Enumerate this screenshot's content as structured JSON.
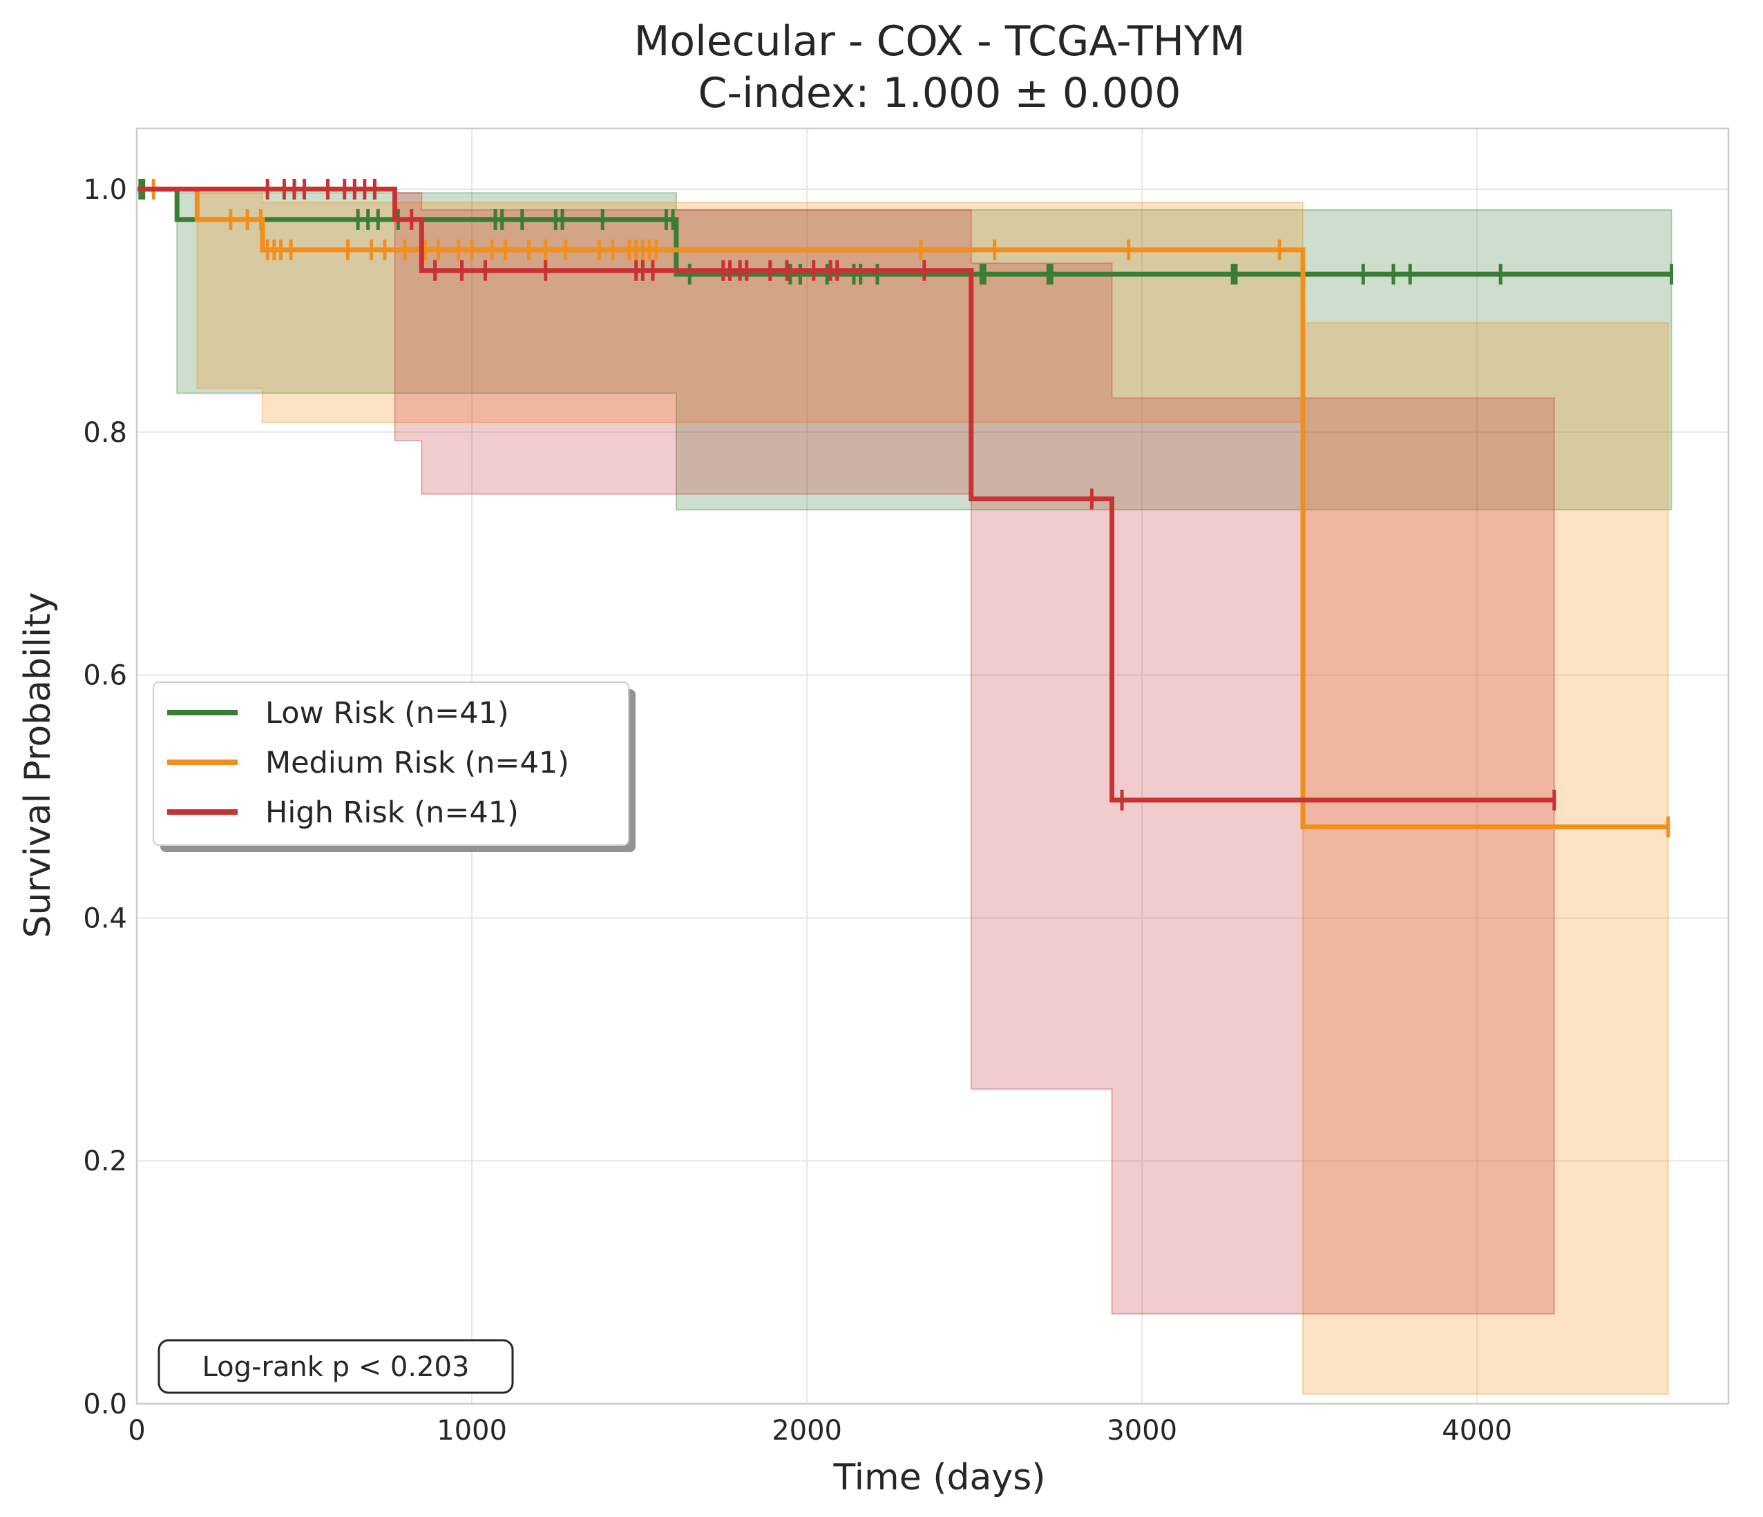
{
  "chart_data": {
    "type": "line",
    "title": "Molecular - COX - TCGA-THYM",
    "subtitle": "C-index: 1.000 ± 0.000",
    "xlabel": "Time (days)",
    "ylabel": "Survival Probability",
    "xlim": [
      0,
      4750
    ],
    "ylim": [
      0,
      1.05
    ],
    "xticks": [
      0,
      1000,
      2000,
      3000,
      4000
    ],
    "xtick_labels": [
      "0",
      "1000",
      "2000",
      "3000",
      "4000"
    ],
    "yticks": [
      0.0,
      0.2,
      0.4,
      0.6,
      0.8,
      1.0
    ],
    "ytick_labels": [
      "0.0",
      "0.2",
      "0.4",
      "0.6",
      "0.8",
      "1.0"
    ],
    "grid": true,
    "legend_position": "center-left",
    "annotation": "Log-rank p < 0.203",
    "series": [
      {
        "name": "Low Risk (n=41)",
        "color": "#3a7d35",
        "steps": [
          [
            0,
            1.0
          ],
          [
            120,
            0.975
          ],
          [
            1610,
            0.93
          ],
          [
            4580,
            0.93
          ]
        ],
        "ci": [
          [
            0,
            1.0,
            1.0
          ],
          [
            120,
            0.832,
            0.997
          ],
          [
            1610,
            0.736,
            0.983
          ],
          [
            4580,
            0.736,
            0.983
          ]
        ],
        "censored": [
          [
            10,
            1.0
          ],
          [
            20,
            1.0
          ],
          [
            660,
            0.975
          ],
          [
            690,
            0.975
          ],
          [
            720,
            0.975
          ],
          [
            780,
            0.975
          ],
          [
            1070,
            0.975
          ],
          [
            1090,
            0.975
          ],
          [
            1150,
            0.975
          ],
          [
            1250,
            0.975
          ],
          [
            1270,
            0.975
          ],
          [
            1390,
            0.975
          ],
          [
            1580,
            0.975
          ],
          [
            1600,
            0.975
          ],
          [
            1650,
            0.93
          ],
          [
            1950,
            0.93
          ],
          [
            1980,
            0.93
          ],
          [
            2060,
            0.93
          ],
          [
            2140,
            0.93
          ],
          [
            2160,
            0.93
          ],
          [
            2210,
            0.93
          ],
          [
            2520,
            0.93
          ],
          [
            2530,
            0.93
          ],
          [
            2720,
            0.93
          ],
          [
            2730,
            0.93
          ],
          [
            3270,
            0.93
          ],
          [
            3280,
            0.93
          ],
          [
            3660,
            0.93
          ],
          [
            3750,
            0.93
          ],
          [
            3800,
            0.93
          ],
          [
            4070,
            0.93
          ],
          [
            4580,
            0.93
          ]
        ]
      },
      {
        "name": "Medium Risk (n=41)",
        "color": "#f28e1c",
        "steps": [
          [
            0,
            1.0
          ],
          [
            180,
            0.975
          ],
          [
            375,
            0.95
          ],
          [
            3480,
            0.475
          ],
          [
            4570,
            0.475
          ]
        ],
        "ci": [
          [
            0,
            1.0,
            1.0
          ],
          [
            180,
            0.836,
            0.997
          ],
          [
            375,
            0.808,
            0.989
          ],
          [
            3480,
            0.008,
            0.89
          ],
          [
            4570,
            0.008,
            0.89
          ]
        ],
        "censored": [
          [
            50,
            1.0
          ],
          [
            280,
            0.975
          ],
          [
            330,
            0.975
          ],
          [
            370,
            0.975
          ],
          [
            390,
            0.95
          ],
          [
            410,
            0.95
          ],
          [
            430,
            0.95
          ],
          [
            460,
            0.95
          ],
          [
            630,
            0.95
          ],
          [
            700,
            0.95
          ],
          [
            740,
            0.95
          ],
          [
            800,
            0.95
          ],
          [
            860,
            0.95
          ],
          [
            900,
            0.95
          ],
          [
            960,
            0.95
          ],
          [
            1000,
            0.95
          ],
          [
            1060,
            0.95
          ],
          [
            1100,
            0.95
          ],
          [
            1170,
            0.95
          ],
          [
            1220,
            0.95
          ],
          [
            1280,
            0.95
          ],
          [
            1380,
            0.95
          ],
          [
            1420,
            0.95
          ],
          [
            1470,
            0.95
          ],
          [
            1490,
            0.95
          ],
          [
            1510,
            0.95
          ],
          [
            1530,
            0.95
          ],
          [
            1550,
            0.95
          ],
          [
            2340,
            0.95
          ],
          [
            2560,
            0.95
          ],
          [
            2960,
            0.95
          ],
          [
            3410,
            0.95
          ],
          [
            4570,
            0.475
          ]
        ]
      },
      {
        "name": "High Risk (n=41)",
        "color": "#c83232",
        "steps": [
          [
            0,
            1.0
          ],
          [
            770,
            0.975
          ],
          [
            850,
            0.933
          ],
          [
            2490,
            0.745
          ],
          [
            2910,
            0.497
          ],
          [
            4230,
            0.497
          ]
        ],
        "ci": [
          [
            0,
            1.0,
            1.0
          ],
          [
            770,
            0.793,
            0.997
          ],
          [
            850,
            0.749,
            0.983
          ],
          [
            2490,
            0.259,
            0.939
          ],
          [
            2910,
            0.074,
            0.828
          ],
          [
            4230,
            0.074,
            0.828
          ]
        ],
        "censored": [
          [
            390,
            1.0
          ],
          [
            440,
            1.0
          ],
          [
            470,
            1.0
          ],
          [
            500,
            1.0
          ],
          [
            570,
            1.0
          ],
          [
            620,
            1.0
          ],
          [
            650,
            1.0
          ],
          [
            680,
            1.0
          ],
          [
            710,
            1.0
          ],
          [
            820,
            0.975
          ],
          [
            890,
            0.933
          ],
          [
            970,
            0.933
          ],
          [
            1040,
            0.933
          ],
          [
            1220,
            0.933
          ],
          [
            1490,
            0.933
          ],
          [
            1510,
            0.933
          ],
          [
            1540,
            0.933
          ],
          [
            1750,
            0.933
          ],
          [
            1770,
            0.933
          ],
          [
            1800,
            0.933
          ],
          [
            1820,
            0.933
          ],
          [
            1890,
            0.933
          ],
          [
            1940,
            0.933
          ],
          [
            2020,
            0.933
          ],
          [
            2070,
            0.933
          ],
          [
            2090,
            0.933
          ],
          [
            2350,
            0.933
          ],
          [
            2850,
            0.745
          ],
          [
            2940,
            0.497
          ],
          [
            4230,
            0.497
          ]
        ]
      }
    ]
  }
}
